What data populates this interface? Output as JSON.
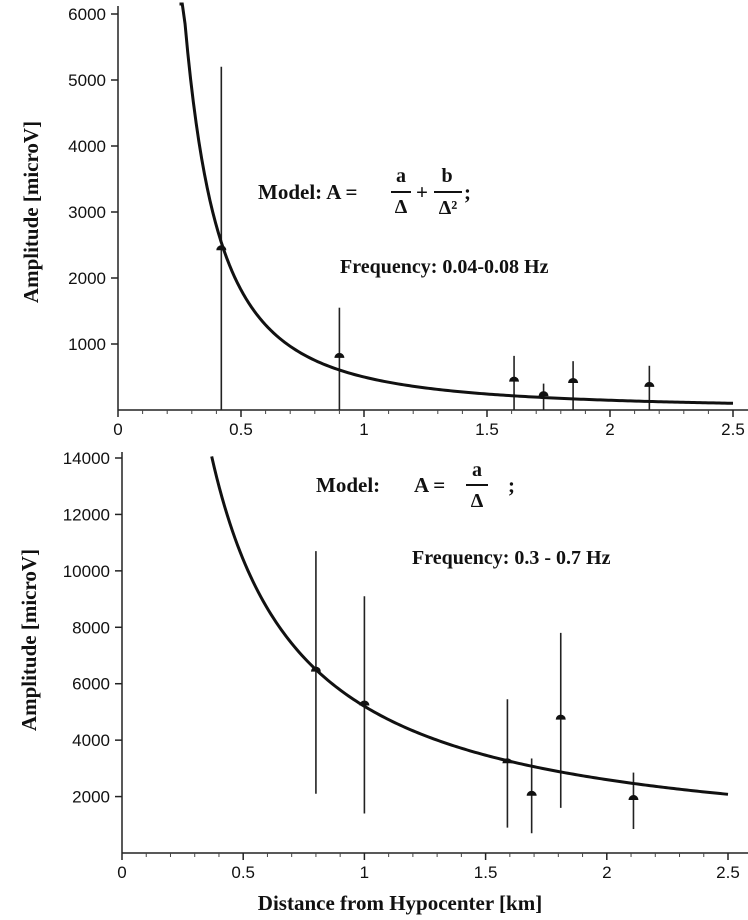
{
  "chart_data": [
    {
      "type": "scatter",
      "title": "",
      "xlabel": "",
      "ylabel": "Amplitude [microV]",
      "xlim": [
        0,
        2.5
      ],
      "ylim": [
        0,
        6000
      ],
      "x_ticks": [
        "0",
        "0.5",
        "1",
        "1.5",
        "2",
        "2.5"
      ],
      "y_ticks": [
        "1000",
        "2000",
        "3000",
        "4000",
        "5000",
        "6000"
      ],
      "x_tick_values": [
        0,
        0.5,
        1,
        1.5,
        2,
        2.5
      ],
      "y_tick_values": [
        1000,
        2000,
        3000,
        4000,
        5000,
        6000
      ],
      "annotations": {
        "model_prefix": "Model: A =",
        "frac1_num": "a",
        "frac1_den": "Δ",
        "plus": "+",
        "frac2_num": "b",
        "frac2_den": "Δ²",
        "suffix": ";",
        "frequency": "Frequency: 0.04-0.08 Hz"
      },
      "points": [
        {
          "x": 0.42,
          "y": 2450,
          "err_low": 0,
          "err_high": 5200
        },
        {
          "x": 0.9,
          "y": 820,
          "err_low": 0,
          "err_high": 1550
        },
        {
          "x": 1.61,
          "y": 460,
          "err_low": 0,
          "err_high": 820
        },
        {
          "x": 1.73,
          "y": 240,
          "err_low": 0,
          "err_high": 400
        },
        {
          "x": 1.85,
          "y": 440,
          "err_low": 0,
          "err_high": 740
        },
        {
          "x": 2.16,
          "y": 380,
          "err_low": 0,
          "err_high": 670
        }
      ],
      "model": {
        "a": 90,
        "b": 410,
        "form": "a/x + b/x^2",
        "x_range": [
          0.25,
          2.5
        ]
      }
    },
    {
      "type": "scatter",
      "title": "",
      "xlabel": "Distance from Hypocenter [km]",
      "ylabel": "Amplitude [microV]",
      "xlim": [
        0,
        2.5
      ],
      "ylim": [
        0,
        14000
      ],
      "x_ticks": [
        "0",
        "0.5",
        "1",
        "1.5",
        "2",
        "2.5"
      ],
      "y_ticks": [
        "2000",
        "4000",
        "6000",
        "8000",
        "10000",
        "12000",
        "14000"
      ],
      "x_tick_values": [
        0,
        0.5,
        1,
        1.5,
        2,
        2.5
      ],
      "y_tick_values": [
        2000,
        4000,
        6000,
        8000,
        10000,
        12000,
        14000
      ],
      "annotations": {
        "model_prefix": "Model:",
        "lhs": "A =",
        "frac1_num": "a",
        "frac1_den": "Δ",
        "suffix": ";",
        "frequency": "Frequency: 0.3 - 0.7 Hz"
      },
      "points": [
        {
          "x": 0.8,
          "y": 6500,
          "err_low": 2100,
          "err_high": 10700
        },
        {
          "x": 1.0,
          "y": 5300,
          "err_low": 1400,
          "err_high": 9100
        },
        {
          "x": 1.59,
          "y": 3250,
          "err_low": 900,
          "err_high": 5450
        },
        {
          "x": 1.69,
          "y": 2100,
          "err_low": 700,
          "err_high": 3350
        },
        {
          "x": 1.81,
          "y": 4800,
          "err_low": 1600,
          "err_high": 7800
        },
        {
          "x": 2.11,
          "y": 1950,
          "err_low": 850,
          "err_high": 2850
        }
      ],
      "model": {
        "a": 5200,
        "form": "a/x",
        "x_range": [
          0.37,
          2.5
        ]
      }
    }
  ]
}
